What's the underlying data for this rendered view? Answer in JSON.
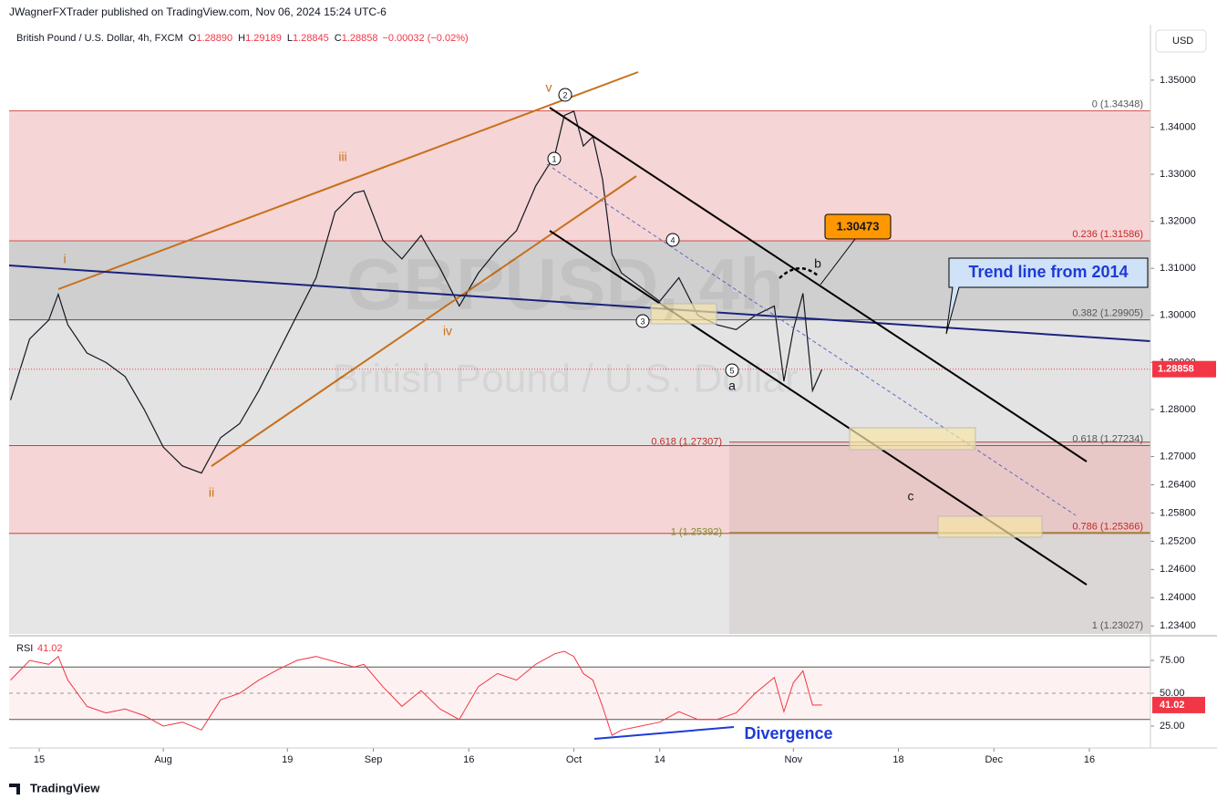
{
  "header": {
    "published": "JWagnerFXTrader published on TradingView.com, Nov 06, 2024 15:24 UTC-6",
    "symbol": "British Pound / U.S. Dollar, 4h, FXCM",
    "ohlc": [
      {
        "label": "O",
        "value": "1.28890"
      },
      {
        "label": "H",
        "value": "1.29189"
      },
      {
        "label": "L",
        "value": "1.28845"
      },
      {
        "label": "C",
        "value": "1.28858"
      }
    ],
    "change": "−0.00032 (−0.02%)",
    "currency": "USD"
  },
  "watermark": {
    "symbol": "GBPUSD, 4h",
    "name": "British Pound / U.S. Dollar"
  },
  "footer": "TradingView",
  "chart_data": {
    "type": "line",
    "x": [
      -3,
      -1,
      1,
      2,
      3,
      5,
      7,
      9,
      11,
      13,
      15,
      17,
      19,
      21,
      23,
      25,
      27,
      29,
      31,
      33,
      34,
      36,
      38,
      40,
      42,
      44,
      46,
      48,
      50,
      52,
      54,
      55,
      56,
      57,
      58,
      59,
      60,
      61,
      63,
      65,
      67,
      69,
      71,
      73,
      75,
      77,
      78,
      79,
      80,
      81,
      82
    ],
    "series": [
      {
        "color": "#131722",
        "values": [
          1.282,
          1.295,
          1.299,
          1.3045,
          1.298,
          1.292,
          1.29,
          1.287,
          1.28,
          1.272,
          1.268,
          1.2665,
          1.274,
          1.277,
          1.284,
          1.292,
          1.3,
          1.308,
          1.322,
          1.326,
          1.3265,
          1.316,
          1.312,
          1.317,
          1.31,
          1.302,
          1.309,
          1.314,
          1.318,
          1.3275,
          1.334,
          1.3425,
          1.3434,
          1.336,
          1.338,
          1.329,
          1.313,
          1.309,
          1.306,
          1.303,
          1.308,
          1.3,
          1.298,
          1.297,
          1.3,
          1.302,
          1.286,
          1.297,
          1.3047,
          1.284,
          1.28858
        ]
      }
    ],
    "last": 1.28858,
    "xlim": [
      -3.15,
      116.4
    ],
    "xticks": [
      {
        "value": 0,
        "label": "15"
      },
      {
        "value": 13,
        "label": "Aug"
      },
      {
        "value": 26,
        "label": "19"
      },
      {
        "value": 35,
        "label": "Sep"
      },
      {
        "value": 45,
        "label": "16"
      },
      {
        "value": 56,
        "label": "Oct"
      },
      {
        "value": 65,
        "label": "14"
      },
      {
        "value": 79,
        "label": "Nov"
      },
      {
        "value": 90,
        "label": "18"
      },
      {
        "value": 100,
        "label": "Dec"
      },
      {
        "value": 110,
        "label": "16"
      }
    ],
    "ylim": [
      1.2323,
      1.3618
    ],
    "yticks": [
      {
        "value": 1.35,
        "label": "1.35000"
      },
      {
        "value": 1.34,
        "label": "1.34000"
      },
      {
        "value": 1.33,
        "label": "1.33000"
      },
      {
        "value": 1.32,
        "label": "1.32000"
      },
      {
        "value": 1.31,
        "label": "1.31000"
      },
      {
        "value": 1.3,
        "label": "1.30000"
      },
      {
        "value": 1.29,
        "label": "1.29000"
      },
      {
        "value": 1.28,
        "label": "1.28000"
      },
      {
        "value": 1.27,
        "label": "1.27000"
      },
      {
        "value": 1.264,
        "label": "1.26400"
      },
      {
        "value": 1.258,
        "label": "1.25800"
      },
      {
        "value": 1.252,
        "label": "1.25200"
      },
      {
        "value": 1.246,
        "label": "1.24600"
      },
      {
        "value": 1.24,
        "label": "1.24000"
      },
      {
        "value": 1.234,
        "label": "1.23400"
      }
    ],
    "fib": [
      {
        "value": 1.34348,
        "label": "0 (1.34348)"
      },
      {
        "value": 1.31586,
        "label": "0.236 (1.31586)"
      },
      {
        "value": 1.29905,
        "label": "0.382 (1.29905)"
      },
      {
        "value": 1.27234,
        "label": "0.618 (1.27234)"
      },
      {
        "value": 1.25366,
        "label": "0.786 (1.25366)"
      },
      {
        "value": 1.23027,
        "label": "1 (1.23027)"
      }
    ],
    "fib2": [
      {
        "value": 1.27307,
        "label": "0.618 (1.27307)"
      },
      {
        "value": 1.25392,
        "label": "1 (1.25392)"
      }
    ],
    "rsi": {
      "label": "RSI",
      "color": "#f23645",
      "values": [
        60,
        75,
        72,
        78,
        60,
        40,
        35,
        38,
        33,
        25,
        28,
        22,
        45,
        50,
        60,
        68,
        75,
        78,
        74,
        70,
        72,
        55,
        40,
        52,
        38,
        30,
        55,
        65,
        60,
        72,
        80,
        82,
        78,
        65,
        60,
        40,
        18,
        22,
        25,
        28,
        36,
        30,
        30,
        35,
        50,
        62,
        36,
        58,
        67,
        41,
        41.02
      ],
      "last": 41.02,
      "ylim": [
        9.7,
        91.7
      ],
      "bands": [
        70,
        30
      ],
      "mid": 50,
      "yticks": [
        {
          "value": 75,
          "label": "75.00"
        },
        {
          "value": 50,
          "label": "50.00"
        },
        {
          "value": 25,
          "label": "25.00"
        }
      ]
    },
    "annotations": {
      "waves": [
        "i",
        "ii",
        "iii",
        "iv",
        "v"
      ],
      "circled": [
        "1",
        "2",
        "3",
        "4",
        "5"
      ],
      "abc": [
        "a",
        "b",
        "c"
      ],
      "price_box": "1.30473",
      "trend": "Trend line from 2014",
      "divergence": "Divergence"
    }
  }
}
